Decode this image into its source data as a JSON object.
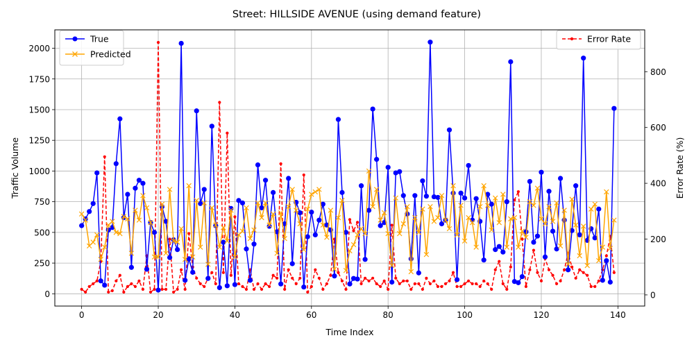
{
  "chart_data": {
    "type": "line",
    "title": "Street: HILLSIDE AVENUE (using demand feature)",
    "xlabel": "Time Index",
    "ylabel_left": "Traffic Volume",
    "ylabel_right": "Error Rate (%)",
    "xlim": [
      -7,
      147
    ],
    "ylim_left": [
      -100,
      2150
    ],
    "ylim_right": [
      -40,
      950
    ],
    "xticks": [
      0,
      20,
      40,
      60,
      80,
      100,
      120,
      140
    ],
    "yticks_left": [
      0,
      250,
      500,
      750,
      1000,
      1250,
      1500,
      1750,
      2000
    ],
    "yticks_right": [
      0,
      200,
      400,
      600,
      800
    ],
    "grid": true,
    "legend_left": {
      "placement": "upper-left",
      "entries": [
        "True",
        "Predicted"
      ]
    },
    "legend_right": {
      "placement": "upper-right",
      "entries": [
        "Error Rate"
      ]
    },
    "colors": {
      "true": "#0000ff",
      "predicted": "#ffa500",
      "error": "#ff0000",
      "grid": "#b0b0b0"
    },
    "series": [
      {
        "name": "True",
        "axis": "left",
        "marker": "circle",
        "line": "solid",
        "values": [
          555,
          610,
          670,
          735,
          985,
          105,
          70,
          520,
          540,
          1060,
          1425,
          620,
          810,
          215,
          860,
          925,
          900,
          200,
          580,
          500,
          30,
          710,
          590,
          295,
          440,
          360,
          2040,
          110,
          285,
          175,
          1490,
          735,
          850,
          125,
          1365,
          555,
          50,
          420,
          65,
          695,
          75,
          760,
          740,
          365,
          110,
          405,
          1050,
          700,
          925,
          550,
          825,
          505,
          80,
          570,
          940,
          245,
          745,
          660,
          55,
          465,
          665,
          480,
          600,
          730,
          560,
          520,
          145,
          1420,
          825,
          500,
          80,
          125,
          120,
          880,
          280,
          680,
          1505,
          1095,
          555,
          580,
          1030,
          95,
          985,
          995,
          800,
          650,
          285,
          800,
          170,
          920,
          795,
          2050,
          790,
          785,
          570,
          600,
          1335,
          820,
          115,
          820,
          780,
          1045,
          600,
          775,
          590,
          275,
          810,
          730,
          360,
          385,
          340,
          750,
          1890,
          100,
          90,
          140,
          505,
          915,
          420,
          470,
          990,
          300,
          835,
          510,
          365,
          940,
          600,
          195,
          515,
          880,
          480,
          1920,
          435,
          530,
          455,
          690,
          110,
          270,
          95,
          1510
        ]
      },
      {
        "name": "Predicted",
        "axis": "left",
        "marker": "x",
        "line": "solid",
        "values": [
          650,
          600,
          390,
          420,
          480,
          280,
          380,
          560,
          590,
          500,
          490,
          630,
          610,
          330,
          680,
          600,
          800,
          700,
          580,
          300,
          300,
          730,
          330,
          850,
          430,
          420,
          530,
          280,
          880,
          300,
          760,
          380,
          740,
          240,
          700,
          560,
          380,
          540,
          430,
          680,
          300,
          480,
          510,
          700,
          450,
          520,
          740,
          620,
          740,
          560,
          650,
          330,
          660,
          450,
          710,
          850,
          680,
          570,
          360,
          690,
          810,
          830,
          850,
          560,
          460,
          680,
          200,
          620,
          760,
          190,
          350,
          400,
          480,
          530,
          490,
          1000,
          710,
          850,
          600,
          660,
          490,
          230,
          780,
          490,
          570,
          710,
          180,
          620,
          500,
          690,
          320,
          710,
          590,
          620,
          800,
          600,
          530,
          880,
          480,
          720,
          430,
          620,
          580,
          380,
          710,
          880,
          720,
          520,
          780,
          580,
          810,
          380,
          610,
          620,
          380,
          510,
          460,
          750,
          720,
          860,
          610,
          570,
          710,
          590,
          740,
          390,
          680,
          240,
          770,
          560,
          310,
          550,
          230,
          690,
          730,
          270,
          380,
          830,
          370,
          600
        ]
      },
      {
        "name": "Error Rate",
        "axis": "right",
        "marker": "dot",
        "line": "dashed",
        "values": [
          20,
          10,
          30,
          40,
          50,
          120,
          495,
          10,
          15,
          50,
          70,
          10,
          30,
          40,
          30,
          50,
          20,
          140,
          10,
          20,
          905,
          20,
          20,
          200,
          10,
          20,
          90,
          20,
          220,
          100,
          60,
          40,
          30,
          60,
          80,
          40,
          690,
          80,
          580,
          70,
          280,
          40,
          30,
          20,
          90,
          20,
          40,
          20,
          40,
          30,
          70,
          60,
          470,
          20,
          90,
          60,
          40,
          60,
          430,
          10,
          30,
          90,
          60,
          20,
          40,
          70,
          200,
          80,
          50,
          20,
          270,
          230,
          260,
          40,
          60,
          50,
          60,
          40,
          30,
          50,
          20,
          250,
          60,
          40,
          50,
          50,
          20,
          40,
          40,
          20,
          60,
          40,
          50,
          30,
          30,
          40,
          50,
          80,
          30,
          30,
          40,
          50,
          40,
          40,
          30,
          50,
          40,
          20,
          90,
          120,
          40,
          20,
          100,
          340,
          370,
          200,
          30,
          90,
          160,
          80,
          50,
          130,
          90,
          70,
          40,
          50,
          90,
          150,
          100,
          60,
          90,
          80,
          70,
          30,
          30,
          50,
          90,
          140,
          210,
          80
        ]
      }
    ]
  }
}
